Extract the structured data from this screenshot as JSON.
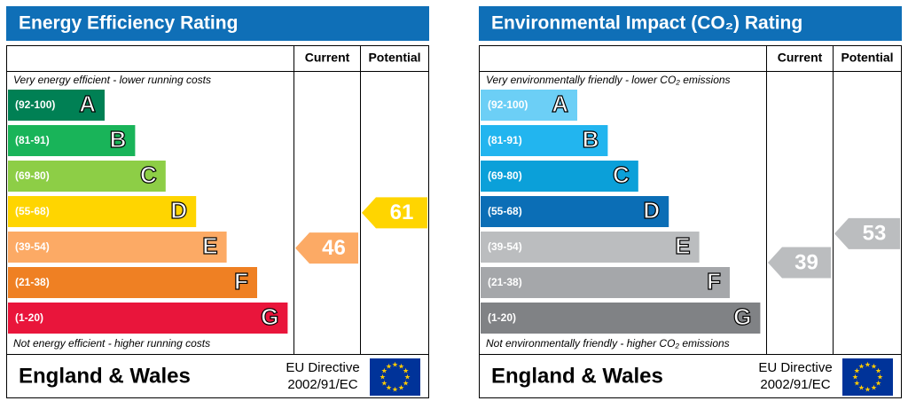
{
  "chart_data": [
    {
      "type": "epc",
      "title": "Energy Efficiency Rating",
      "headers": [
        "Current",
        "Potential"
      ],
      "top_note": "Very energy efficient - lower running costs",
      "bottom_note": "Not energy efficient - higher running costs",
      "bands": [
        {
          "range": "(92-100)",
          "letter": "A",
          "color": "#008054"
        },
        {
          "range": "(81-91)",
          "letter": "B",
          "color": "#19b459"
        },
        {
          "range": "(69-80)",
          "letter": "C",
          "color": "#8dce46"
        },
        {
          "range": "(55-68)",
          "letter": "D",
          "color": "#ffd500"
        },
        {
          "range": "(39-54)",
          "letter": "E",
          "color": "#fcaa65"
        },
        {
          "range": "(21-38)",
          "letter": "F",
          "color": "#ef8023"
        },
        {
          "range": "(1-20)",
          "letter": "G",
          "color": "#e9153b"
        }
      ],
      "current": 46,
      "potential": 61,
      "footer": {
        "region": "England & Wales",
        "directive": [
          "EU Directive",
          "2002/91/EC"
        ]
      }
    },
    {
      "type": "epc",
      "title": "Environmental Impact (CO₂) Rating",
      "headers": [
        "Current",
        "Potential"
      ],
      "top_note": "Very environmentally friendly - lower CO₂ emissions",
      "bottom_note": "Not environmentally friendly - higher CO₂ emissions",
      "bands": [
        {
          "range": "(92-100)",
          "letter": "A",
          "color": "#6ccff6"
        },
        {
          "range": "(81-91)",
          "letter": "B",
          "color": "#22b5ef"
        },
        {
          "range": "(69-80)",
          "letter": "C",
          "color": "#0ba0d9"
        },
        {
          "range": "(55-68)",
          "letter": "D",
          "color": "#0b6eb6"
        },
        {
          "range": "(39-54)",
          "letter": "E",
          "color": "#bbbdbf"
        },
        {
          "range": "(21-38)",
          "letter": "F",
          "color": "#a5a7aa"
        },
        {
          "range": "(1-20)",
          "letter": "G",
          "color": "#808285"
        }
      ],
      "current": 39,
      "potential": 53,
      "footer": {
        "region": "England & Wales",
        "directive": [
          "EU Directive",
          "2002/91/EC"
        ]
      }
    }
  ]
}
